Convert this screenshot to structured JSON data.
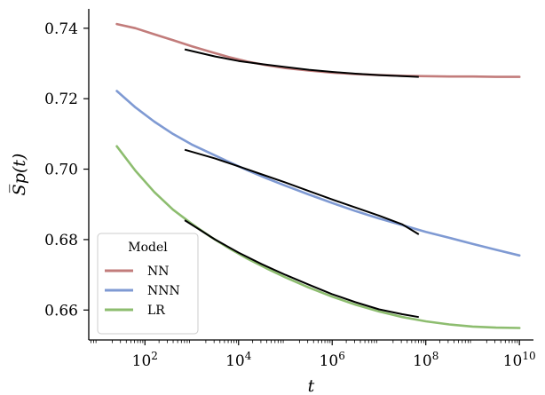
{
  "chart_data": {
    "type": "line",
    "title": "",
    "xlabel": "t",
    "ylabel": "S̅p(t)",
    "xscale": "log",
    "xlim_log10": [
      0.8,
      10.3
    ],
    "ylim": [
      0.6515,
      0.7455
    ],
    "xticks": [
      {
        "label_base": "10",
        "label_exp": "2",
        "log10": 2
      },
      {
        "label_base": "10",
        "label_exp": "4",
        "log10": 4
      },
      {
        "label_base": "10",
        "label_exp": "6",
        "log10": 6
      },
      {
        "label_base": "10",
        "label_exp": "8",
        "log10": 8
      },
      {
        "label_base": "10",
        "label_exp": "10",
        "log10": 10
      }
    ],
    "yticks": [
      {
        "label": "0.66",
        "value": 0.66
      },
      {
        "label": "0.68",
        "value": 0.68
      },
      {
        "label": "0.70",
        "value": 0.7
      },
      {
        "label": "0.72",
        "value": 0.72
      },
      {
        "label": "0.74",
        "value": 0.74
      }
    ],
    "legend": {
      "title": "Model",
      "placement": "lower-left"
    },
    "grid": false,
    "series": [
      {
        "name": "NN",
        "color": "#c27c7b",
        "x_log10": [
          1.4,
          1.8,
          2.2,
          2.6,
          3.0,
          3.4,
          3.8,
          4.2,
          4.6,
          5.0,
          5.5,
          6.0,
          6.5,
          7.0,
          7.5,
          8.0,
          8.5,
          9.0,
          9.5,
          10.0
        ],
        "y": [
          0.7412,
          0.74,
          0.7383,
          0.7366,
          0.7349,
          0.7333,
          0.7318,
          0.7305,
          0.7295,
          0.7287,
          0.728,
          0.7274,
          0.727,
          0.7267,
          0.7265,
          0.7264,
          0.7263,
          0.7263,
          0.7262,
          0.7262
        ]
      },
      {
        "name": "NNN",
        "color": "#7f9ad3",
        "x_log10": [
          1.4,
          1.8,
          2.2,
          2.6,
          3.0,
          3.4,
          3.8,
          4.2,
          4.6,
          5.0,
          5.5,
          6.0,
          6.5,
          7.0,
          7.5,
          8.0,
          8.5,
          9.0,
          9.5,
          10.0
        ],
        "y": [
          0.7222,
          0.7175,
          0.7135,
          0.71,
          0.707,
          0.7045,
          0.702,
          0.6996,
          0.6974,
          0.6953,
          0.6928,
          0.6904,
          0.6881,
          0.686,
          0.6841,
          0.6822,
          0.6805,
          0.6788,
          0.6771,
          0.6755
        ]
      },
      {
        "name": "LR",
        "color": "#8dbd6f",
        "x_log10": [
          1.4,
          1.8,
          2.2,
          2.6,
          3.0,
          3.4,
          3.8,
          4.2,
          4.6,
          5.0,
          5.5,
          6.0,
          6.5,
          7.0,
          7.5,
          8.0,
          8.5,
          9.0,
          9.5,
          10.0
        ],
        "y": [
          0.7065,
          0.6995,
          0.6935,
          0.6885,
          0.6845,
          0.6808,
          0.6775,
          0.6745,
          0.6718,
          0.6693,
          0.6664,
          0.6638,
          0.6615,
          0.6596,
          0.658,
          0.6568,
          0.6559,
          0.6553,
          0.655,
          0.6549
        ]
      }
    ],
    "fits": [
      {
        "for": "NN",
        "color": "#000000",
        "x_log10": [
          2.85,
          3.5,
          4.0,
          4.5,
          5.0,
          5.5,
          6.0,
          6.5,
          7.0,
          7.5,
          7.85
        ],
        "y": [
          0.734,
          0.732,
          0.7307,
          0.7298,
          0.729,
          0.7282,
          0.7276,
          0.7271,
          0.7267,
          0.7264,
          0.7262
        ]
      },
      {
        "for": "NNN",
        "color": "#000000",
        "x_log10": [
          2.85,
          3.5,
          4.0,
          4.5,
          5.0,
          5.5,
          6.0,
          6.5,
          7.0,
          7.5,
          7.85
        ],
        "y": [
          0.7055,
          0.703,
          0.7008,
          0.6985,
          0.6962,
          0.6938,
          0.6914,
          0.6891,
          0.6868,
          0.6843,
          0.6815
        ]
      },
      {
        "for": "LR",
        "color": "#000000",
        "x_log10": [
          2.85,
          3.5,
          4.0,
          4.5,
          5.0,
          5.5,
          6.0,
          6.5,
          7.0,
          7.5,
          7.85
        ],
        "y": [
          0.6855,
          0.68,
          0.6763,
          0.673,
          0.67,
          0.6672,
          0.6645,
          0.6622,
          0.6602,
          0.6588,
          0.658
        ]
      }
    ]
  }
}
